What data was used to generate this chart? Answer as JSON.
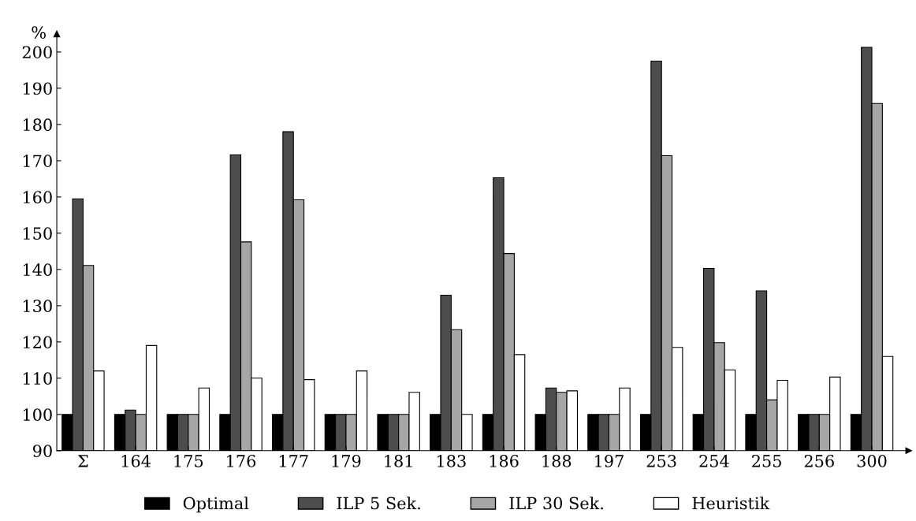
{
  "chart_data": {
    "type": "bar",
    "ylabel": "%",
    "categories": [
      "Σ",
      "164",
      "175",
      "176",
      "177",
      "179",
      "181",
      "183",
      "186",
      "188",
      "197",
      "253",
      "254",
      "255",
      "256",
      "300"
    ],
    "series": [
      {
        "name": "Optimal",
        "color": "#000000",
        "values": [
          100,
          100,
          100,
          100,
          100,
          100,
          100,
          100,
          100,
          100,
          100,
          100,
          100,
          100,
          100,
          100
        ]
      },
      {
        "name": "ILP 5 Sek.",
        "color": "#4d4d4d",
        "values": [
          159.5,
          101.2,
          100,
          171.6,
          178,
          100,
          100,
          132.9,
          165.3,
          107.3,
          100,
          197.5,
          140.3,
          134.1,
          100,
          201.3
        ]
      },
      {
        "name": "ILP 30 Sek.",
        "color": "#a6a6a6",
        "values": [
          141.1,
          100,
          100,
          147.6,
          159.2,
          100,
          100,
          123.4,
          144.4,
          106.1,
          100,
          171.4,
          119.8,
          104,
          100,
          185.8
        ]
      },
      {
        "name": "Heuristik",
        "color": "#ffffff",
        "values": [
          112,
          119,
          107.3,
          110,
          109.6,
          112,
          106.1,
          100,
          116.5,
          106.5,
          107.3,
          118.5,
          112.3,
          109.4,
          110.3,
          116
        ]
      }
    ],
    "ylim": [
      90,
      205
    ],
    "yticks": [
      90,
      100,
      110,
      120,
      130,
      140,
      150,
      160,
      170,
      180,
      190,
      200
    ],
    "grid": false,
    "legend": "bottom"
  }
}
